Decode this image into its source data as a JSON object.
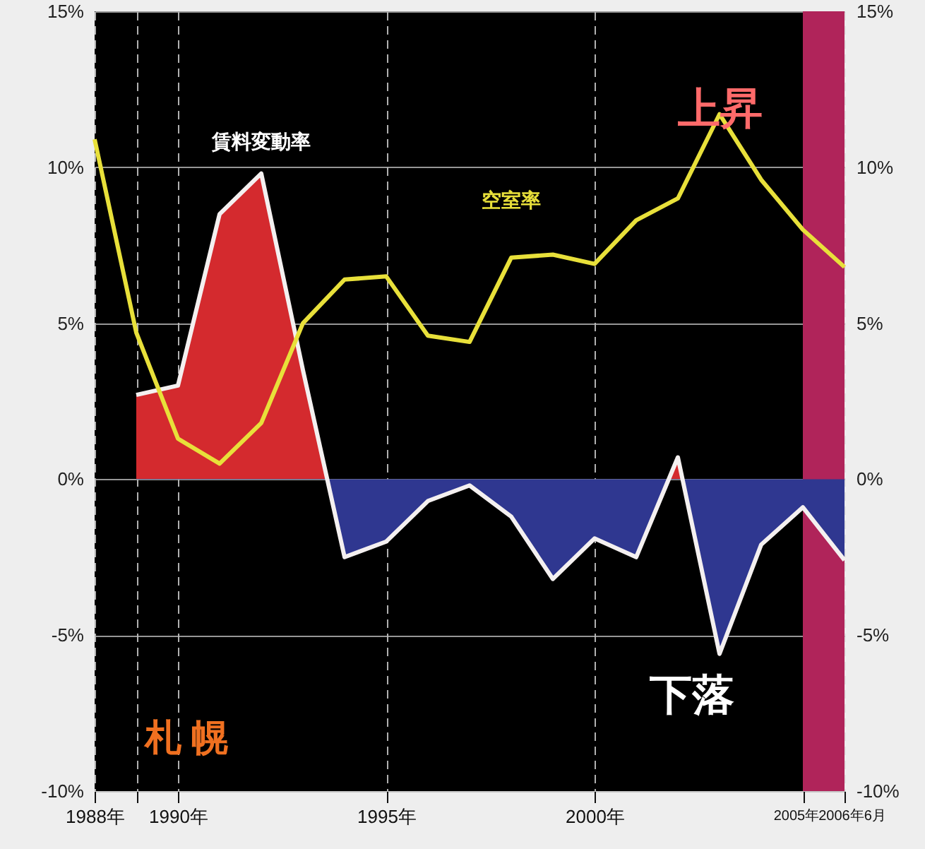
{
  "chart_data": {
    "type": "line",
    "x": [
      1988,
      1989,
      1990,
      1991,
      1992,
      1993,
      1994,
      1995,
      1996,
      1997,
      1998,
      1999,
      2000,
      2001,
      2002,
      2003,
      2004,
      2005,
      2006
    ],
    "series": [
      {
        "name": "賃料変動率",
        "type": "area",
        "colors": [
          null,
          "#d42a2e",
          "#d42a2e",
          "#d42a2e",
          "#d42a2e",
          "#d42a2e",
          "#2f3790",
          "#2f3790",
          "#2f3790",
          "#2f3790",
          "#2f3790",
          "#2f3790",
          "#2f3790",
          "#2f3790",
          "#d42a2e",
          "#2f3790",
          "#2f3790",
          "#2f3790",
          "#2f3790"
        ],
        "values": [
          null,
          2.7,
          3.0,
          8.5,
          9.8,
          3.5,
          -2.5,
          -2.0,
          -0.7,
          -0.2,
          -1.2,
          -3.2,
          -1.9,
          -2.5,
          0.7,
          -5.6,
          -2.1,
          -0.9,
          -2.6
        ]
      },
      {
        "name": "空室率",
        "type": "line",
        "color": "#e8e03a",
        "values": [
          10.9,
          4.7,
          1.3,
          0.5,
          1.8,
          5.0,
          6.4,
          6.5,
          4.6,
          4.4,
          7.1,
          7.2,
          6.9,
          8.3,
          9.0,
          11.7,
          9.6,
          8.0,
          6.8
        ]
      }
    ],
    "xlim": [
      1988,
      2006
    ],
    "xticks": [
      {
        "value": 1988,
        "label": "1988年"
      },
      {
        "value": 1989,
        "label": null
      },
      {
        "value": 1990,
        "label": "1990年"
      },
      {
        "value": 1995,
        "label": "1995年"
      },
      {
        "value": 2000,
        "label": "2000年"
      },
      {
        "value": 2005,
        "label": "2005年"
      },
      {
        "value": 2006,
        "label": "2006年6月"
      }
    ],
    "ylim": [
      -10,
      15
    ],
    "yticks": [
      {
        "value": -10,
        "label": "-10%"
      },
      {
        "value": -5,
        "label": "-5%"
      },
      {
        "value": 0,
        "label": "0%"
      },
      {
        "value": 5,
        "label": "5%"
      },
      {
        "value": 10,
        "label": "10%"
      },
      {
        "value": 15,
        "label": "15%"
      }
    ],
    "y2lim": [
      -10,
      15
    ],
    "y2ticks": [
      {
        "value": -10,
        "label": "-10%"
      },
      {
        "value": -5,
        "label": "-5%"
      },
      {
        "value": 0,
        "label": "0%"
      },
      {
        "value": 5,
        "label": "5%"
      },
      {
        "value": 10,
        "label": "10%"
      },
      {
        "value": 15,
        "label": "15%"
      }
    ],
    "bands": [
      {
        "axis": "x",
        "from": 2005,
        "to": 2006,
        "label": null,
        "color": "#b0245a"
      }
    ],
    "annotations": [
      "上昇",
      "下落",
      "札 幌"
    ],
    "grid": true
  }
}
